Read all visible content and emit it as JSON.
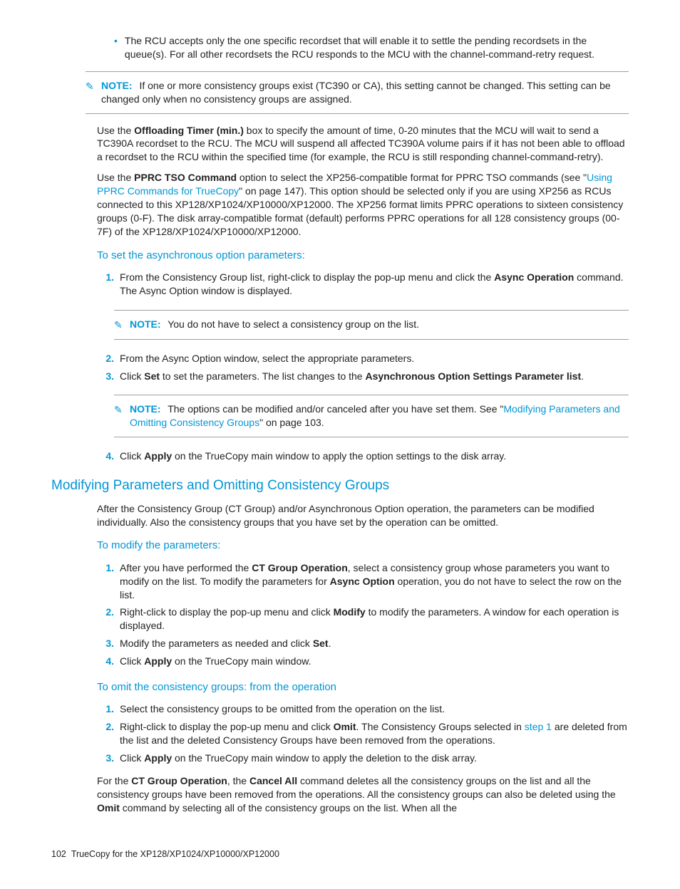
{
  "colors": {
    "accent": "#0096d6",
    "text": "#222222",
    "rule": "#9aa0a6",
    "background": "#ffffff"
  },
  "typography": {
    "body_family": "Futura / Trebuchet-like sans-serif",
    "body_size_pt": 10.5,
    "h2_size_pt": 14,
    "sub_heading_size_pt": 11
  },
  "rcu_bullet": {
    "text": "The RCU accepts only the one specific recordset that will enable it to settle the pending recordsets in the queue(s). For all other recordsets the RCU responds to the MCU with the channel-command-retry request."
  },
  "note_top": {
    "label": "NOTE:",
    "text": "If one or more consistency groups exist (TC390 or CA), this setting cannot be changed. This setting can be changed only when no consistency groups are assigned."
  },
  "para_offloading": {
    "pre": "Use the ",
    "bold": "Offloading Timer (min.)",
    "post": " box to specify the amount of time, 0-20 minutes that the MCU will wait to send a TC390A recordset to the RCU. The MCU will suspend all affected TC390A volume pairs if it has not been able to offload a recordset to the RCU within the specified time (for example, the RCU is still responding channel-command-retry)."
  },
  "para_pprc": {
    "pre": "Use the ",
    "bold": "PPRC TSO Command",
    "mid1": " option to select the XP256-compatible format for PPRC TSO commands (see \"",
    "link": "Using PPRC Commands for TrueCopy",
    "mid2": "\" on page 147). This option should be selected only if you are using XP256 as RCUs connected to this XP128/XP1024/XP10000/XP12000. The XP256 format limits PPRC operations to sixteen consistency groups (0-F). The disk array-compatible format (default) performs PPRC operations for all 128 consistency groups (00-7F) of the XP128/XP1024/XP10000/XP12000."
  },
  "heading_async": "To set the asynchronous option parameters:",
  "async_steps": {
    "s1": {
      "num": "1.",
      "pre": "From the Consistency Group list, right-click to display the pop-up menu and click the ",
      "bold": "Async Operation",
      "post": " command. The Async Option window is displayed."
    },
    "s2": {
      "num": "2.",
      "text": "From the Async Option window, select the appropriate parameters."
    },
    "s3": {
      "num": "3.",
      "pre": "Click ",
      "bold1": "Set",
      "mid": " to set the parameters. The list changes to the ",
      "bold2": "Asynchronous Option Settings Parameter list",
      "post": "."
    },
    "s4": {
      "num": "4.",
      "pre": "Click ",
      "bold": "Apply",
      "post": " on the TrueCopy main window to apply the option settings to the disk array."
    }
  },
  "note_async1": {
    "label": "NOTE:",
    "text": "You do not have to select a consistency group on the list."
  },
  "note_async2": {
    "label": "NOTE:",
    "pre": "The options can be modified and/or canceled after you have set them. See \"",
    "link": "Modifying Parameters and Omitting Consistency Groups",
    "post": "\" on page 103."
  },
  "h2_modify": "Modifying Parameters and Omitting Consistency Groups",
  "para_modify_intro": "After the Consistency Group (CT Group) and/or Asynchronous Option operation, the parameters can be modified individually. Also the consistency groups that you have set by the operation can be omitted.",
  "heading_modify": "To modify the parameters:",
  "modify_steps": {
    "s1": {
      "num": "1.",
      "pre": "After you have performed the ",
      "bold1": "CT Group Operation",
      "mid": ", select a consistency group whose parameters you want to modify on the list. To modify the parameters for ",
      "bold2": "Async Option",
      "post": " operation, you do not have to select the row on the list."
    },
    "s2": {
      "num": "2.",
      "pre": "Right-click to display the pop-up menu and click ",
      "bold": "Modify",
      "post": " to modify the parameters. A window for each operation is displayed."
    },
    "s3": {
      "num": "3.",
      "pre": "Modify the parameters as needed and click ",
      "bold": "Set",
      "post": "."
    },
    "s4": {
      "num": "4.",
      "pre": "Click ",
      "bold": "Apply",
      "post": " on the TrueCopy main window."
    }
  },
  "heading_omit": "To omit the consistency groups: from the operation",
  "omit_steps": {
    "s1": {
      "num": "1.",
      "text": "Select the consistency groups to be omitted from the operation on the list."
    },
    "s2": {
      "num": "2.",
      "pre": "Right-click to display the pop-up menu and click ",
      "bold": "Omit",
      "mid": ". The Consistency Groups selected in ",
      "link": "step 1",
      "post": " are deleted from the list and the deleted Consistency Groups have been removed from the operations."
    },
    "s3": {
      "num": "3.",
      "pre": "Click ",
      "bold": "Apply",
      "post": " on the TrueCopy main window to apply the deletion to the disk array."
    }
  },
  "para_cancel": {
    "pre": "For the ",
    "bold1": "CT Group Operation",
    "mid1": ", the ",
    "bold2": "Cancel All",
    "mid2": " command deletes all the consistency groups on the list and all the consistency groups have been removed from the operations. All the consistency groups can also be deleted using the ",
    "bold3": "Omit",
    "post": " command by selecting all of the consistency groups on the list. When all the"
  },
  "footer": {
    "page": "102",
    "title": "TrueCopy for the XP128/XP1024/XP10000/XP12000"
  }
}
